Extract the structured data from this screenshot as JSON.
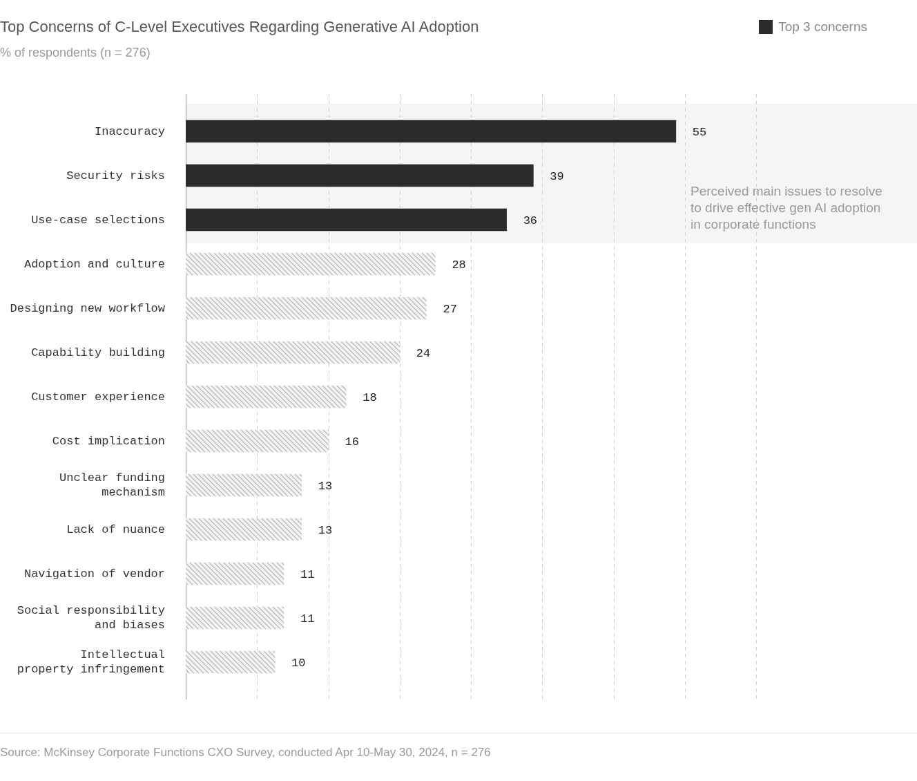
{
  "chart_data": {
    "type": "bar",
    "orientation": "horizontal",
    "title": "Top Concerns of C-Level Executives Regarding Generative AI Adoption",
    "subtitle": "% of respondents (n = 276)",
    "annotation": "Perceived main issues to resolve\nto drive effective gen AI adoption\nin corporate functions",
    "source": "Source: McKinsey Corporate Functions CXO Survey, conducted Apr 10-May 30, 2024, n = 276",
    "categories": [
      "Inaccuracy",
      "Security risks",
      "Use-case selections",
      "Adoption and culture",
      "Designing new workflow",
      "Capability building",
      "Customer experience",
      "Cost implication",
      "Unclear funding\nmechanism",
      "Lack of nuance",
      "Navigation of vendor",
      "Social responsibility\nand biases",
      "Intellectual\nproperty infringement"
    ],
    "series": [
      {
        "name": "Top 3 concerns",
        "color": "#2b2b2b",
        "values": [
          55,
          39,
          36,
          null,
          null,
          null,
          null,
          null,
          null,
          null,
          null,
          null,
          null
        ]
      },
      {
        "color": "#b0b0b0",
        "values": [
          null,
          null,
          null,
          28,
          27,
          24,
          18,
          16,
          13,
          13,
          11,
          11,
          10
        ]
      }
    ],
    "stacked": true,
    "xlim": [
      0,
      64
    ],
    "xticks": [
      0,
      8,
      16,
      24,
      32,
      40,
      48,
      56,
      64
    ],
    "grid": true,
    "legend": "top-right",
    "data_labels": true,
    "tick_labels": "y"
  }
}
